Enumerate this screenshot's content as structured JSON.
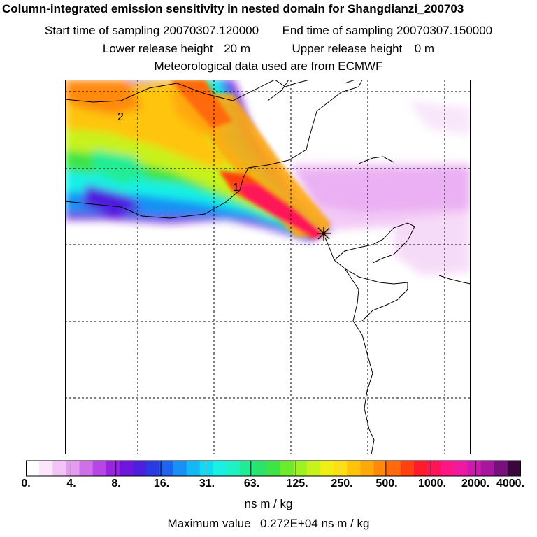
{
  "header": {
    "title": "Column-integrated emission sensitivity in nested domain for Shangdianzi_200703",
    "start_label": "Start time of sampling",
    "start_value": "20070307.120000",
    "end_label": "End time of sampling",
    "end_value": "20070307.150000",
    "lower_label": "Lower release height",
    "lower_value": "20 m",
    "upper_label": "Upper release height",
    "upper_value": "0 m",
    "met_line": "Meteorological data used are from ECMWF"
  },
  "map": {
    "contour_labels": [
      "2",
      "1"
    ],
    "release_marker": "release-site-star"
  },
  "legend": {
    "ticks": [
      "0.",
      "4.",
      "8.",
      "16.",
      "31.",
      "63.",
      "125.",
      "250.",
      "500.",
      "1000.",
      "2000.",
      "4000."
    ],
    "colors": [
      "#ffffff",
      "#fbe6fb",
      "#f2c4f5",
      "#e59cf0",
      "#d070e8",
      "#b845e6",
      "#9a22e0",
      "#7016dc",
      "#4f1fdf",
      "#2c3ae6",
      "#1e64f0",
      "#1990f5",
      "#14b8f7",
      "#12d9f3",
      "#18f0e6",
      "#1ef2c4",
      "#20ec94",
      "#28e46a",
      "#3ee445",
      "#6aec2a",
      "#9af322",
      "#c8f21c",
      "#eef014",
      "#ffe00c",
      "#ffc40a",
      "#ffa80a",
      "#ff8a0a",
      "#ff6a0c",
      "#ff4010",
      "#ff1c2a",
      "#ff1458",
      "#ff1684",
      "#f01aa0",
      "#d018b0",
      "#a816a0",
      "#7a107c",
      "#3a0640"
    ],
    "units": "ns m / kg",
    "max_label": "Maximum value",
    "max_value": "0.272E+04 ns m / kg"
  }
}
